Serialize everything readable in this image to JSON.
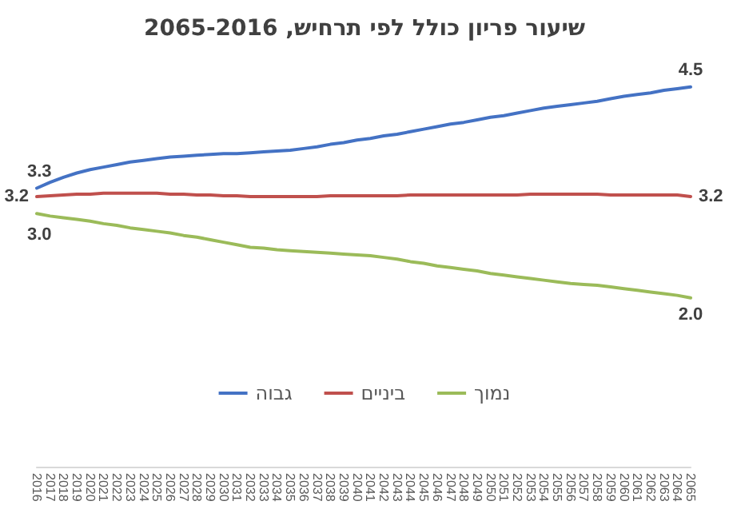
{
  "chart_data": {
    "type": "line",
    "title": "שיעור פריון כולל לפי תרחיש, 2065-2016",
    "categories": [
      "2016",
      "2017",
      "2018",
      "2019",
      "2020",
      "2021",
      "2022",
      "2023",
      "2024",
      "2025",
      "2026",
      "2027",
      "2028",
      "2029",
      "2030",
      "2031",
      "2032",
      "2033",
      "2034",
      "2035",
      "2036",
      "2037",
      "2038",
      "2039",
      "2040",
      "2041",
      "2042",
      "2043",
      "2044",
      "2045",
      "2046",
      "2047",
      "2048",
      "2049",
      "2050",
      "2051",
      "2052",
      "2053",
      "2054",
      "2055",
      "2056",
      "2057",
      "2058",
      "2059",
      "2060",
      "2061",
      "2062",
      "2063",
      "2064",
      "2065"
    ],
    "series": [
      {
        "name": "גבוה",
        "color": "#4472c4",
        "values": [
          3.3,
          3.37,
          3.43,
          3.48,
          3.52,
          3.55,
          3.58,
          3.61,
          3.63,
          3.65,
          3.67,
          3.68,
          3.69,
          3.7,
          3.71,
          3.71,
          3.72,
          3.73,
          3.74,
          3.75,
          3.77,
          3.79,
          3.82,
          3.84,
          3.87,
          3.89,
          3.92,
          3.94,
          3.97,
          4.0,
          4.03,
          4.06,
          4.08,
          4.11,
          4.14,
          4.16,
          4.19,
          4.22,
          4.25,
          4.27,
          4.29,
          4.31,
          4.33,
          4.36,
          4.39,
          4.41,
          4.43,
          4.46,
          4.48,
          4.5
        ],
        "value_labels": [
          "3.3",
          null,
          null,
          null,
          null,
          null,
          null,
          null,
          null,
          null,
          null,
          null,
          null,
          null,
          null,
          null,
          null,
          null,
          null,
          null,
          null,
          null,
          null,
          null,
          null,
          null,
          null,
          null,
          null,
          null,
          null,
          null,
          null,
          null,
          null,
          null,
          null,
          null,
          null,
          null,
          null,
          null,
          null,
          null,
          null,
          null,
          null,
          null,
          null,
          "4.5"
        ]
      },
      {
        "name": "ביניים",
        "color": "#c0504d",
        "values": [
          3.2,
          3.21,
          3.22,
          3.23,
          3.23,
          3.24,
          3.24,
          3.24,
          3.24,
          3.24,
          3.23,
          3.23,
          3.22,
          3.22,
          3.21,
          3.21,
          3.2,
          3.2,
          3.2,
          3.2,
          3.2,
          3.2,
          3.21,
          3.21,
          3.21,
          3.21,
          3.21,
          3.21,
          3.22,
          3.22,
          3.22,
          3.22,
          3.22,
          3.22,
          3.22,
          3.22,
          3.22,
          3.23,
          3.23,
          3.23,
          3.23,
          3.23,
          3.23,
          3.22,
          3.22,
          3.22,
          3.22,
          3.22,
          3.22,
          3.2
        ],
        "value_labels": [
          "3.2",
          null,
          null,
          null,
          null,
          null,
          null,
          null,
          null,
          null,
          null,
          null,
          null,
          null,
          null,
          null,
          null,
          null,
          null,
          null,
          null,
          null,
          null,
          null,
          null,
          null,
          null,
          null,
          null,
          null,
          null,
          null,
          null,
          null,
          null,
          null,
          null,
          null,
          null,
          null,
          null,
          null,
          null,
          null,
          null,
          null,
          null,
          null,
          null,
          "3.2"
        ]
      },
      {
        "name": "נמוך",
        "color": "#9bbb59",
        "values": [
          3.0,
          2.97,
          2.95,
          2.93,
          2.91,
          2.88,
          2.86,
          2.83,
          2.81,
          2.79,
          2.77,
          2.74,
          2.72,
          2.69,
          2.66,
          2.63,
          2.6,
          2.59,
          2.57,
          2.56,
          2.55,
          2.54,
          2.53,
          2.52,
          2.51,
          2.5,
          2.48,
          2.46,
          2.43,
          2.41,
          2.38,
          2.36,
          2.34,
          2.32,
          2.29,
          2.27,
          2.25,
          2.23,
          2.21,
          2.19,
          2.17,
          2.16,
          2.15,
          2.13,
          2.11,
          2.09,
          2.07,
          2.05,
          2.03,
          2.0
        ],
        "value_labels": [
          "3.0",
          null,
          null,
          null,
          null,
          null,
          null,
          null,
          null,
          null,
          null,
          null,
          null,
          null,
          null,
          null,
          null,
          null,
          null,
          null,
          null,
          null,
          null,
          null,
          null,
          null,
          null,
          null,
          null,
          null,
          null,
          null,
          null,
          null,
          null,
          null,
          null,
          null,
          null,
          null,
          null,
          null,
          null,
          null,
          null,
          null,
          null,
          null,
          null,
          "2.0"
        ]
      }
    ],
    "legend": "bottom",
    "grid": false,
    "marker": "none",
    "line_style": "solid"
  }
}
